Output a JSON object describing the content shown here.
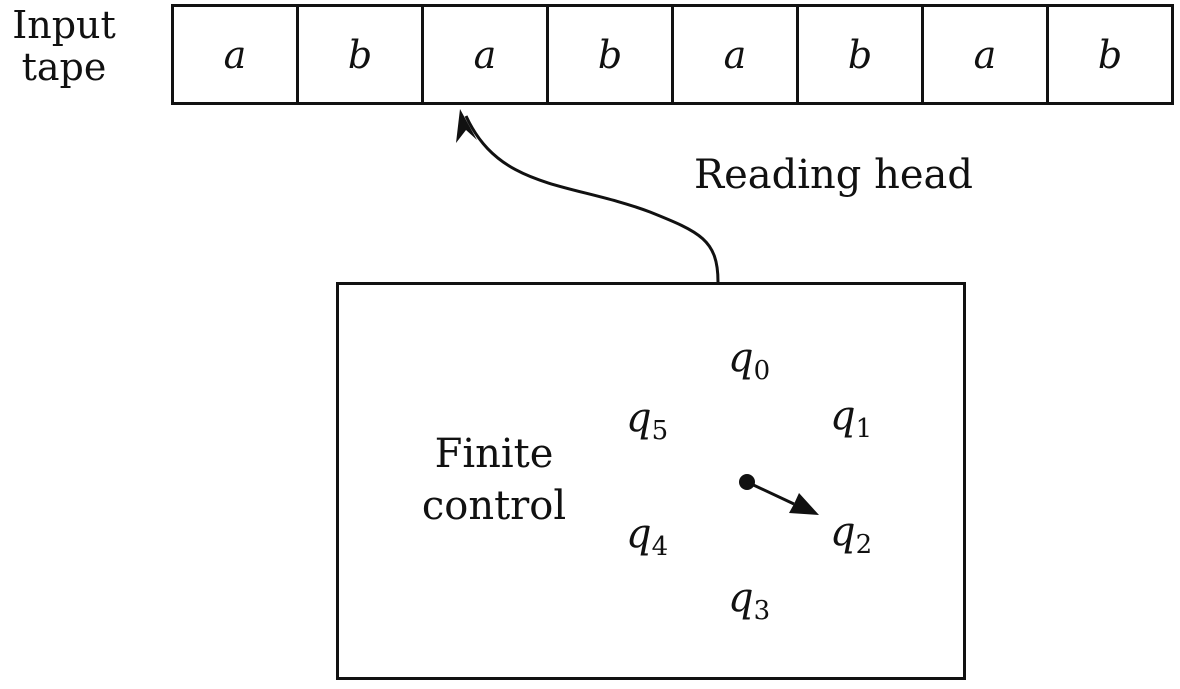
{
  "tape": {
    "label_line1": "Input",
    "label_line2": "tape",
    "cells": [
      "a",
      "b",
      "a",
      "b",
      "a",
      "b",
      "a",
      "b"
    ]
  },
  "reading_head": {
    "label": "Reading head"
  },
  "finite_control": {
    "label_line1": "Finite",
    "label_line2": "control",
    "states": [
      {
        "symbol": "q",
        "sub": "0"
      },
      {
        "symbol": "q",
        "sub": "1"
      },
      {
        "symbol": "q",
        "sub": "2"
      },
      {
        "symbol": "q",
        "sub": "3"
      },
      {
        "symbol": "q",
        "sub": "4"
      },
      {
        "symbol": "q",
        "sub": "5"
      }
    ]
  }
}
